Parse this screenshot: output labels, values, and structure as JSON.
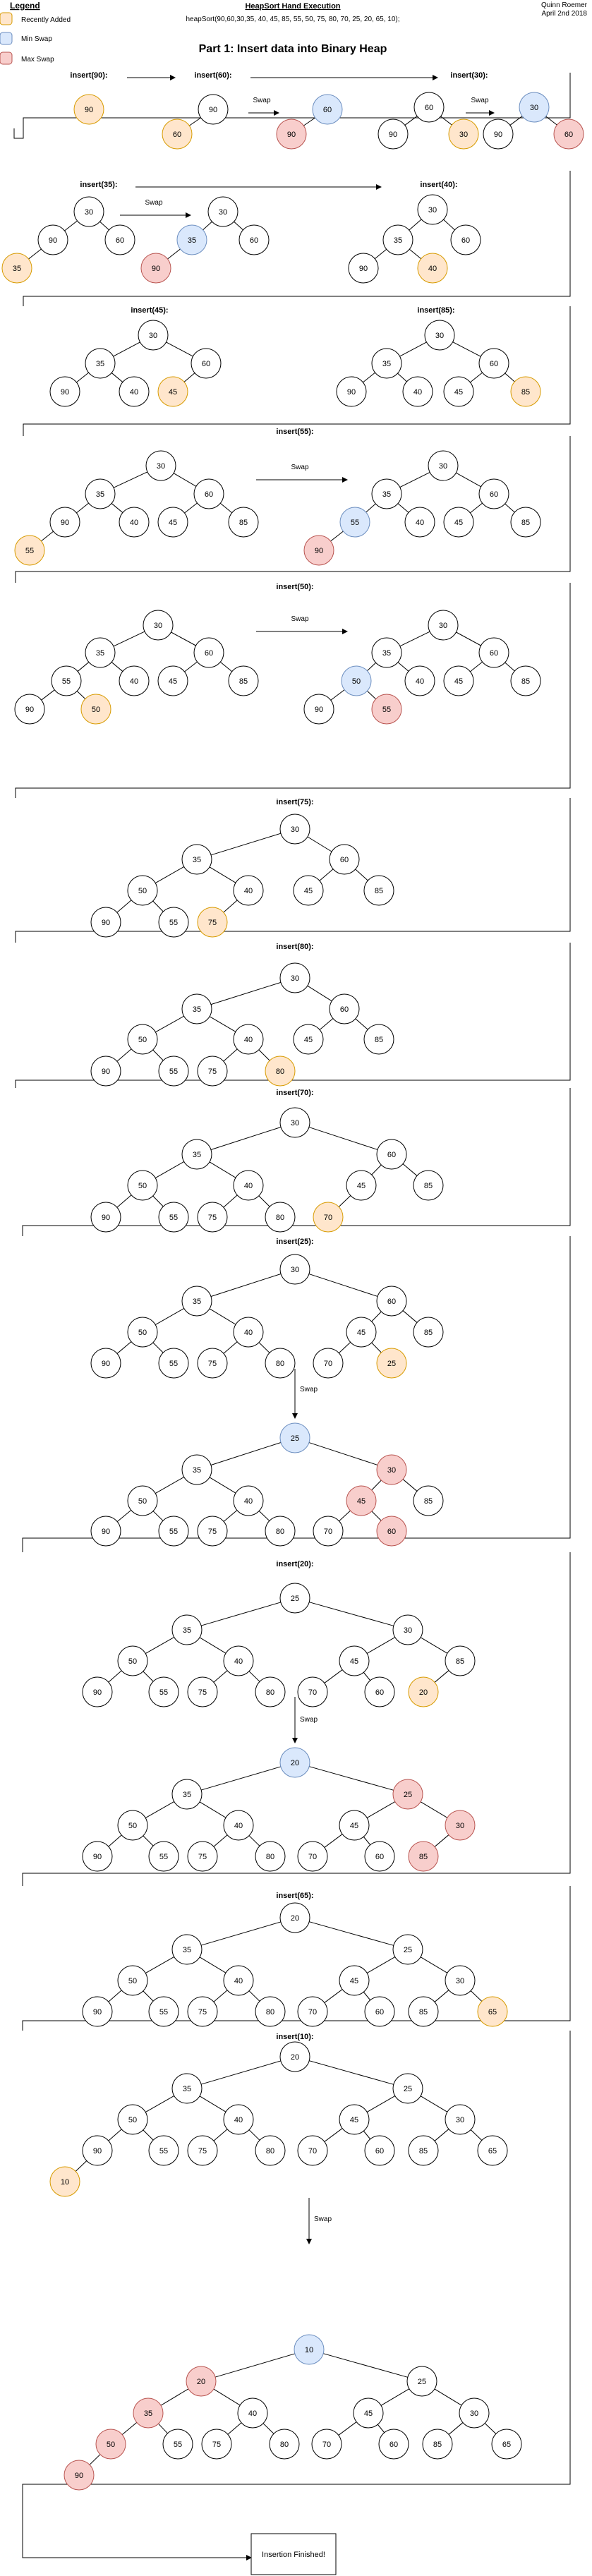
{
  "header": {
    "legend_title": "Legend",
    "legend_items": [
      {
        "label": "Recently Added",
        "fill": "#ffe6cc",
        "stroke": "#d79b00"
      },
      {
        "label": "Min Swap",
        "fill": "#dae8fc",
        "stroke": "#6c8ebf"
      },
      {
        "label": "Max Swap",
        "fill": "#f8cecc",
        "stroke": "#b85450"
      }
    ],
    "doc_title": "HeapSort Hand Execution",
    "doc_subtitle": "heapSort(90,60,30,35, 40, 45, 85, 55, 50, 75, 80, 70, 25, 20, 65, 10);",
    "author": "Quinn Roemer",
    "date": "April 2nd 2018",
    "part_title": "Part 1: Insert data into Binary Heap"
  },
  "colors": {
    "added": "#ffe6cc",
    "min": "#dae8fc",
    "max": "#f8cecc",
    "plain": "#ffffff"
  },
  "steps": [
    {
      "label": "insert(90):"
    },
    {
      "label": "insert(60):",
      "swap": "Swap"
    },
    {
      "label": "insert(30):",
      "swap": "Swap"
    },
    {
      "label": "insert(35):",
      "swap": "Swap"
    },
    {
      "label": "insert(40):"
    },
    {
      "label": "insert(45):"
    },
    {
      "label": "insert(85):"
    },
    {
      "label": "insert(55):",
      "swap": "Swap"
    },
    {
      "label": "insert(50):",
      "swap": "Swap"
    },
    {
      "label": "insert(75):"
    },
    {
      "label": "insert(80):"
    },
    {
      "label": "insert(70):"
    },
    {
      "label": "insert(25):",
      "swap": "Swap"
    },
    {
      "label": "insert(20):",
      "swap": "Swap"
    },
    {
      "label": "insert(65):"
    },
    {
      "label": "insert(10):",
      "swap": "Swap"
    }
  ],
  "heaps": [
    {
      "id": "h90",
      "nodes": [
        [
          "90",
          "added"
        ]
      ]
    },
    {
      "id": "h60a",
      "nodes": [
        [
          "90",
          "plain"
        ],
        [
          "60",
          "added"
        ]
      ]
    },
    {
      "id": "h60b",
      "nodes": [
        [
          "60",
          "min"
        ],
        [
          "90",
          "max"
        ]
      ]
    },
    {
      "id": "h30a",
      "nodes": [
        [
          "60",
          "plain"
        ],
        [
          "90",
          "plain"
        ],
        [
          "30",
          "added"
        ]
      ]
    },
    {
      "id": "h30b",
      "nodes": [
        [
          "30",
          "min"
        ],
        [
          "90",
          "plain"
        ],
        [
          "60",
          "max"
        ]
      ]
    },
    {
      "id": "h35a",
      "nodes": [
        [
          "30",
          "plain"
        ],
        [
          "90",
          "plain"
        ],
        [
          "60",
          "plain"
        ],
        [
          "35",
          "added"
        ]
      ]
    },
    {
      "id": "h35b",
      "nodes": [
        [
          "30",
          "plain"
        ],
        [
          "35",
          "min"
        ],
        [
          "60",
          "plain"
        ],
        [
          "90",
          "max"
        ]
      ]
    },
    {
      "id": "h40",
      "nodes": [
        [
          "30",
          "plain"
        ],
        [
          "35",
          "plain"
        ],
        [
          "60",
          "plain"
        ],
        [
          "90",
          "plain"
        ],
        [
          "40",
          "added"
        ]
      ]
    },
    {
      "id": "h45",
      "nodes": [
        [
          "30",
          "plain"
        ],
        [
          "35",
          "plain"
        ],
        [
          "60",
          "plain"
        ],
        [
          "90",
          "plain"
        ],
        [
          "40",
          "plain"
        ],
        [
          "45",
          "added"
        ]
      ]
    },
    {
      "id": "h85",
      "nodes": [
        [
          "30",
          "plain"
        ],
        [
          "35",
          "plain"
        ],
        [
          "60",
          "plain"
        ],
        [
          "90",
          "plain"
        ],
        [
          "40",
          "plain"
        ],
        [
          "45",
          "plain"
        ],
        [
          "85",
          "added"
        ]
      ]
    },
    {
      "id": "h55a",
      "nodes": [
        [
          "30",
          "plain"
        ],
        [
          "35",
          "plain"
        ],
        [
          "60",
          "plain"
        ],
        [
          "90",
          "plain"
        ],
        [
          "40",
          "plain"
        ],
        [
          "45",
          "plain"
        ],
        [
          "85",
          "plain"
        ],
        [
          "55",
          "added"
        ]
      ]
    },
    {
      "id": "h55b",
      "nodes": [
        [
          "30",
          "plain"
        ],
        [
          "35",
          "plain"
        ],
        [
          "60",
          "plain"
        ],
        [
          "55",
          "min"
        ],
        [
          "40",
          "plain"
        ],
        [
          "45",
          "plain"
        ],
        [
          "85",
          "plain"
        ],
        [
          "90",
          "max"
        ]
      ]
    },
    {
      "id": "h50a",
      "nodes": [
        [
          "30",
          "plain"
        ],
        [
          "35",
          "plain"
        ],
        [
          "60",
          "plain"
        ],
        [
          "55",
          "plain"
        ],
        [
          "40",
          "plain"
        ],
        [
          "45",
          "plain"
        ],
        [
          "85",
          "plain"
        ],
        [
          "90",
          "plain"
        ],
        [
          "50",
          "added"
        ]
      ]
    },
    {
      "id": "h50b",
      "nodes": [
        [
          "30",
          "plain"
        ],
        [
          "35",
          "plain"
        ],
        [
          "60",
          "plain"
        ],
        [
          "50",
          "min"
        ],
        [
          "40",
          "plain"
        ],
        [
          "45",
          "plain"
        ],
        [
          "85",
          "plain"
        ],
        [
          "90",
          "plain"
        ],
        [
          "55",
          "max"
        ]
      ]
    },
    {
      "id": "h75",
      "nodes": [
        [
          "30",
          "plain"
        ],
        [
          "35",
          "plain"
        ],
        [
          "60",
          "plain"
        ],
        [
          "50",
          "plain"
        ],
        [
          "40",
          "plain"
        ],
        [
          "45",
          "plain"
        ],
        [
          "85",
          "plain"
        ],
        [
          "90",
          "plain"
        ],
        [
          "55",
          "plain"
        ],
        [
          "75",
          "added"
        ]
      ]
    },
    {
      "id": "h80",
      "nodes": [
        [
          "30",
          "plain"
        ],
        [
          "35",
          "plain"
        ],
        [
          "60",
          "plain"
        ],
        [
          "50",
          "plain"
        ],
        [
          "40",
          "plain"
        ],
        [
          "45",
          "plain"
        ],
        [
          "85",
          "plain"
        ],
        [
          "90",
          "plain"
        ],
        [
          "55",
          "plain"
        ],
        [
          "75",
          "plain"
        ],
        [
          "80",
          "added"
        ]
      ]
    },
    {
      "id": "h70",
      "nodes": [
        [
          "30",
          "plain"
        ],
        [
          "35",
          "plain"
        ],
        [
          "60",
          "plain"
        ],
        [
          "50",
          "plain"
        ],
        [
          "40",
          "plain"
        ],
        [
          "45",
          "plain"
        ],
        [
          "85",
          "plain"
        ],
        [
          "90",
          "plain"
        ],
        [
          "55",
          "plain"
        ],
        [
          "75",
          "plain"
        ],
        [
          "80",
          "plain"
        ],
        [
          "70",
          "added"
        ]
      ]
    },
    {
      "id": "h25a",
      "nodes": [
        [
          "30",
          "plain"
        ],
        [
          "35",
          "plain"
        ],
        [
          "60",
          "plain"
        ],
        [
          "50",
          "plain"
        ],
        [
          "40",
          "plain"
        ],
        [
          "45",
          "plain"
        ],
        [
          "85",
          "plain"
        ],
        [
          "90",
          "plain"
        ],
        [
          "55",
          "plain"
        ],
        [
          "75",
          "plain"
        ],
        [
          "80",
          "plain"
        ],
        [
          "70",
          "plain"
        ],
        [
          "25",
          "added"
        ]
      ]
    },
    {
      "id": "h25b",
      "nodes": [
        [
          "25",
          "min"
        ],
        [
          "35",
          "plain"
        ],
        [
          "30",
          "max"
        ],
        [
          "50",
          "plain"
        ],
        [
          "40",
          "plain"
        ],
        [
          "45",
          "max"
        ],
        [
          "85",
          "plain"
        ],
        [
          "90",
          "plain"
        ],
        [
          "55",
          "plain"
        ],
        [
          "75",
          "plain"
        ],
        [
          "80",
          "plain"
        ],
        [
          "70",
          "plain"
        ],
        [
          "60",
          "max"
        ]
      ]
    },
    {
      "id": "h20a",
      "nodes": [
        [
          "25",
          "plain"
        ],
        [
          "35",
          "plain"
        ],
        [
          "30",
          "plain"
        ],
        [
          "50",
          "plain"
        ],
        [
          "40",
          "plain"
        ],
        [
          "45",
          "plain"
        ],
        [
          "85",
          "plain"
        ],
        [
          "90",
          "plain"
        ],
        [
          "55",
          "plain"
        ],
        [
          "75",
          "plain"
        ],
        [
          "80",
          "plain"
        ],
        [
          "70",
          "plain"
        ],
        [
          "60",
          "plain"
        ],
        [
          "20",
          "added"
        ]
      ]
    },
    {
      "id": "h20b",
      "nodes": [
        [
          "20",
          "min"
        ],
        [
          "35",
          "plain"
        ],
        [
          "25",
          "max"
        ],
        [
          "50",
          "plain"
        ],
        [
          "40",
          "plain"
        ],
        [
          "45",
          "plain"
        ],
        [
          "30",
          "max"
        ],
        [
          "90",
          "plain"
        ],
        [
          "55",
          "plain"
        ],
        [
          "75",
          "plain"
        ],
        [
          "80",
          "plain"
        ],
        [
          "70",
          "plain"
        ],
        [
          "60",
          "plain"
        ],
        [
          "85",
          "max"
        ]
      ]
    },
    {
      "id": "h65",
      "nodes": [
        [
          "20",
          "plain"
        ],
        [
          "35",
          "plain"
        ],
        [
          "25",
          "plain"
        ],
        [
          "50",
          "plain"
        ],
        [
          "40",
          "plain"
        ],
        [
          "45",
          "plain"
        ],
        [
          "30",
          "plain"
        ],
        [
          "90",
          "plain"
        ],
        [
          "55",
          "plain"
        ],
        [
          "75",
          "plain"
        ],
        [
          "80",
          "plain"
        ],
        [
          "70",
          "plain"
        ],
        [
          "60",
          "plain"
        ],
        [
          "85",
          "plain"
        ],
        [
          "65",
          "added"
        ]
      ]
    },
    {
      "id": "h10a",
      "nodes": [
        [
          "20",
          "plain"
        ],
        [
          "35",
          "plain"
        ],
        [
          "25",
          "plain"
        ],
        [
          "50",
          "plain"
        ],
        [
          "40",
          "plain"
        ],
        [
          "45",
          "plain"
        ],
        [
          "30",
          "plain"
        ],
        [
          "90",
          "plain"
        ],
        [
          "55",
          "plain"
        ],
        [
          "75",
          "plain"
        ],
        [
          "80",
          "plain"
        ],
        [
          "70",
          "plain"
        ],
        [
          "60",
          "plain"
        ],
        [
          "85",
          "plain"
        ],
        [
          "65",
          "plain"
        ],
        [
          "10",
          "added"
        ]
      ]
    },
    {
      "id": "h10b",
      "nodes": [
        [
          "10",
          "min"
        ],
        [
          "20",
          "max"
        ],
        [
          "25",
          "plain"
        ],
        [
          "35",
          "max"
        ],
        [
          "40",
          "plain"
        ],
        [
          "45",
          "plain"
        ],
        [
          "30",
          "plain"
        ],
        [
          "50",
          "max"
        ],
        [
          "55",
          "plain"
        ],
        [
          "75",
          "plain"
        ],
        [
          "80",
          "plain"
        ],
        [
          "70",
          "plain"
        ],
        [
          "60",
          "plain"
        ],
        [
          "85",
          "plain"
        ],
        [
          "65",
          "plain"
        ],
        [
          "90",
          "max"
        ]
      ]
    }
  ],
  "finish_label": "Insertion Finished!"
}
